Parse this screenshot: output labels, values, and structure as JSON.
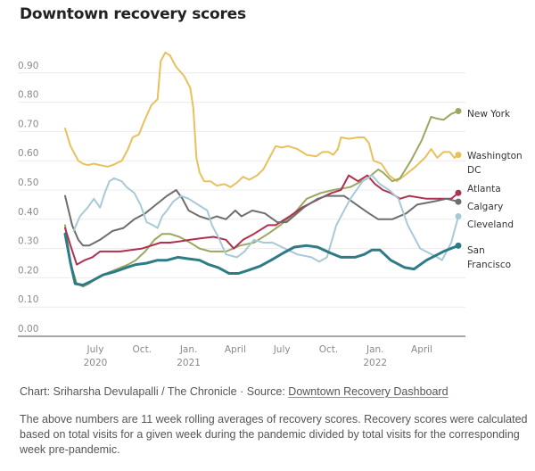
{
  "title": "Downtown recovery scores",
  "credit": {
    "prefix": "Chart: Sriharsha Devulapalli / The Chronicle · Source: ",
    "link_text": "Downtown Recovery Dashboard"
  },
  "note": "The above numbers are 11 week rolling averages of recovery scores. Recovery scores were calculated based on total visits for a given week during the pandemic divided by total visits for the corresponding week pre-pandemic.",
  "chart_data": {
    "type": "line",
    "title": "Downtown recovery scores",
    "xlabel": "",
    "ylabel": "",
    "x_unit": "months since Jan 2020 (0 = Jan 1, 2020)",
    "xlim": [
      2.0,
      31.0
    ],
    "ylim": [
      0,
      0.95
    ],
    "grid": true,
    "legend": "direct labels at line ends (right)",
    "yticks": [
      {
        "value": 0.0,
        "label": "0.00"
      },
      {
        "value": 0.1,
        "label": "0.10"
      },
      {
        "value": 0.2,
        "label": "0.20"
      },
      {
        "value": 0.3,
        "label": "0.30"
      },
      {
        "value": 0.4,
        "label": "0.40"
      },
      {
        "value": 0.5,
        "label": "0.50"
      },
      {
        "value": 0.6,
        "label": "0.60"
      },
      {
        "value": 0.7,
        "label": "0.70"
      },
      {
        "value": 0.8,
        "label": "0.80"
      },
      {
        "value": 0.9,
        "label": "0.90"
      }
    ],
    "xticks": [
      {
        "value": 6,
        "label": "July",
        "sub": "2020"
      },
      {
        "value": 9,
        "label": "Oct.",
        "sub": ""
      },
      {
        "value": 12,
        "label": "Jan.",
        "sub": "2021"
      },
      {
        "value": 15,
        "label": "April",
        "sub": ""
      },
      {
        "value": 18,
        "label": "July",
        "sub": ""
      },
      {
        "value": 21,
        "label": "Oct.",
        "sub": ""
      },
      {
        "value": 24,
        "label": "Jan.",
        "sub": "2022"
      },
      {
        "value": 27,
        "label": "April",
        "sub": ""
      }
    ],
    "series": [
      {
        "name": "Washington DC",
        "label_lines": [
          "Washington",
          "DC"
        ],
        "color": "#e8c15c",
        "points": [
          [
            4.05,
            0.71
          ],
          [
            4.4,
            0.65
          ],
          [
            4.9,
            0.6
          ],
          [
            5.2,
            0.59
          ],
          [
            5.5,
            0.585
          ],
          [
            5.9,
            0.59
          ],
          [
            6.3,
            0.585
          ],
          [
            6.8,
            0.58
          ],
          [
            7.1,
            0.585
          ],
          [
            7.7,
            0.6
          ],
          [
            8.1,
            0.64
          ],
          [
            8.4,
            0.68
          ],
          [
            8.8,
            0.69
          ],
          [
            9.1,
            0.73
          ],
          [
            9.6,
            0.79
          ],
          [
            10.0,
            0.81
          ],
          [
            10.2,
            0.94
          ],
          [
            10.5,
            0.97
          ],
          [
            10.8,
            0.96
          ],
          [
            11.2,
            0.92
          ],
          [
            11.7,
            0.89
          ],
          [
            12.1,
            0.85
          ],
          [
            12.3,
            0.78
          ],
          [
            12.5,
            0.61
          ],
          [
            12.7,
            0.56
          ],
          [
            13.0,
            0.53
          ],
          [
            13.4,
            0.53
          ],
          [
            13.8,
            0.515
          ],
          [
            14.3,
            0.52
          ],
          [
            14.7,
            0.51
          ],
          [
            15.1,
            0.525
          ],
          [
            15.5,
            0.545
          ],
          [
            15.9,
            0.535
          ],
          [
            16.4,
            0.55
          ],
          [
            16.8,
            0.57
          ],
          [
            17.2,
            0.61
          ],
          [
            17.6,
            0.65
          ],
          [
            18.0,
            0.645
          ],
          [
            18.4,
            0.65
          ],
          [
            19.0,
            0.64
          ],
          [
            19.6,
            0.62
          ],
          [
            20.2,
            0.615
          ],
          [
            20.6,
            0.63
          ],
          [
            21.0,
            0.63
          ],
          [
            21.3,
            0.62
          ],
          [
            21.6,
            0.64
          ],
          [
            21.8,
            0.68
          ],
          [
            22.3,
            0.675
          ],
          [
            22.9,
            0.68
          ],
          [
            23.3,
            0.68
          ],
          [
            23.6,
            0.66
          ],
          [
            23.9,
            0.6
          ],
          [
            24.4,
            0.59
          ],
          [
            24.9,
            0.55
          ],
          [
            25.4,
            0.53
          ],
          [
            25.9,
            0.55
          ],
          [
            26.6,
            0.58
          ],
          [
            27.2,
            0.61
          ],
          [
            27.6,
            0.64
          ],
          [
            28.0,
            0.61
          ],
          [
            28.4,
            0.63
          ],
          [
            28.8,
            0.63
          ],
          [
            29.1,
            0.61
          ],
          [
            29.35,
            0.62
          ]
        ]
      },
      {
        "name": "New York",
        "label_lines": [
          "New York"
        ],
        "color": "#9aa861",
        "points": [
          [
            4.05,
            0.38
          ],
          [
            4.4,
            0.25
          ],
          [
            4.8,
            0.18
          ],
          [
            5.2,
            0.17
          ],
          [
            5.6,
            0.18
          ],
          [
            6.1,
            0.2
          ],
          [
            6.7,
            0.215
          ],
          [
            7.4,
            0.23
          ],
          [
            8.1,
            0.245
          ],
          [
            8.6,
            0.26
          ],
          [
            9.2,
            0.29
          ],
          [
            9.8,
            0.33
          ],
          [
            10.3,
            0.35
          ],
          [
            10.8,
            0.35
          ],
          [
            11.4,
            0.34
          ],
          [
            12.1,
            0.32
          ],
          [
            12.7,
            0.3
          ],
          [
            13.4,
            0.29
          ],
          [
            14.4,
            0.29
          ],
          [
            15.3,
            0.31
          ],
          [
            16.2,
            0.32
          ],
          [
            17.1,
            0.35
          ],
          [
            17.9,
            0.38
          ],
          [
            18.8,
            0.42
          ],
          [
            19.6,
            0.47
          ],
          [
            20.5,
            0.49
          ],
          [
            21.3,
            0.5
          ],
          [
            22.4,
            0.51
          ],
          [
            23.5,
            0.54
          ],
          [
            24.2,
            0.57
          ],
          [
            24.5,
            0.56
          ],
          [
            25.1,
            0.53
          ],
          [
            25.6,
            0.54
          ],
          [
            26.3,
            0.6
          ],
          [
            27.0,
            0.67
          ],
          [
            27.6,
            0.75
          ],
          [
            27.9,
            0.745
          ],
          [
            28.4,
            0.74
          ],
          [
            28.9,
            0.76
          ],
          [
            29.35,
            0.77
          ]
        ]
      },
      {
        "name": "Atlanta",
        "label_lines": [
          "Atlanta"
        ],
        "color": "#b0304f",
        "points": [
          [
            4.05,
            0.37
          ],
          [
            4.4,
            0.31
          ],
          [
            4.8,
            0.245
          ],
          [
            5.3,
            0.26
          ],
          [
            5.8,
            0.27
          ],
          [
            6.3,
            0.29
          ],
          [
            6.9,
            0.29
          ],
          [
            7.6,
            0.29
          ],
          [
            8.3,
            0.295
          ],
          [
            9.0,
            0.3
          ],
          [
            9.6,
            0.31
          ],
          [
            10.2,
            0.32
          ],
          [
            10.8,
            0.32
          ],
          [
            11.5,
            0.325
          ],
          [
            12.1,
            0.33
          ],
          [
            12.8,
            0.335
          ],
          [
            13.6,
            0.34
          ],
          [
            14.4,
            0.33
          ],
          [
            14.9,
            0.3
          ],
          [
            15.5,
            0.33
          ],
          [
            16.2,
            0.35
          ],
          [
            17.1,
            0.38
          ],
          [
            17.6,
            0.38
          ],
          [
            18.5,
            0.41
          ],
          [
            19.3,
            0.44
          ],
          [
            20.4,
            0.47
          ],
          [
            21.2,
            0.49
          ],
          [
            21.8,
            0.5
          ],
          [
            22.3,
            0.55
          ],
          [
            22.9,
            0.53
          ],
          [
            23.5,
            0.55
          ],
          [
            24.0,
            0.52
          ],
          [
            24.5,
            0.5
          ],
          [
            25.0,
            0.49
          ],
          [
            25.6,
            0.47
          ],
          [
            26.2,
            0.48
          ],
          [
            27.3,
            0.47
          ],
          [
            28.4,
            0.47
          ],
          [
            28.9,
            0.47
          ],
          [
            29.35,
            0.49
          ]
        ]
      },
      {
        "name": "Calgary",
        "label_lines": [
          "Calgary"
        ],
        "color": "#6e6e6e",
        "points": [
          [
            4.05,
            0.48
          ],
          [
            4.5,
            0.38
          ],
          [
            4.9,
            0.33
          ],
          [
            5.2,
            0.31
          ],
          [
            5.6,
            0.31
          ],
          [
            6.3,
            0.33
          ],
          [
            7.1,
            0.36
          ],
          [
            7.8,
            0.37
          ],
          [
            8.5,
            0.4
          ],
          [
            9.2,
            0.42
          ],
          [
            9.9,
            0.45
          ],
          [
            10.6,
            0.48
          ],
          [
            11.2,
            0.5
          ],
          [
            11.6,
            0.47
          ],
          [
            12.0,
            0.43
          ],
          [
            12.7,
            0.41
          ],
          [
            13.3,
            0.4
          ],
          [
            13.8,
            0.41
          ],
          [
            14.4,
            0.4
          ],
          [
            15.0,
            0.43
          ],
          [
            15.4,
            0.41
          ],
          [
            16.1,
            0.43
          ],
          [
            16.9,
            0.42
          ],
          [
            17.7,
            0.39
          ],
          [
            18.3,
            0.39
          ],
          [
            19.4,
            0.44
          ],
          [
            20.3,
            0.47
          ],
          [
            20.9,
            0.48
          ],
          [
            22.0,
            0.48
          ],
          [
            22.8,
            0.45
          ],
          [
            23.6,
            0.42
          ],
          [
            24.2,
            0.4
          ],
          [
            25.1,
            0.4
          ],
          [
            26.0,
            0.42
          ],
          [
            26.7,
            0.45
          ],
          [
            27.7,
            0.46
          ],
          [
            28.6,
            0.47
          ],
          [
            29.35,
            0.46
          ]
        ]
      },
      {
        "name": "Cleveland",
        "label_lines": [
          "Cleveland"
        ],
        "color": "#a9c9d8",
        "points": [
          [
            4.6,
            0.36
          ],
          [
            5.0,
            0.41
          ],
          [
            5.5,
            0.44
          ],
          [
            5.9,
            0.47
          ],
          [
            6.3,
            0.44
          ],
          [
            6.6,
            0.49
          ],
          [
            6.9,
            0.53
          ],
          [
            7.2,
            0.54
          ],
          [
            7.7,
            0.53
          ],
          [
            8.0,
            0.51
          ],
          [
            8.5,
            0.49
          ],
          [
            8.9,
            0.45
          ],
          [
            9.3,
            0.39
          ],
          [
            9.7,
            0.38
          ],
          [
            10.0,
            0.37
          ],
          [
            10.3,
            0.41
          ],
          [
            10.6,
            0.43
          ],
          [
            11.0,
            0.46
          ],
          [
            11.5,
            0.48
          ],
          [
            12.0,
            0.47
          ],
          [
            12.6,
            0.45
          ],
          [
            13.2,
            0.43
          ],
          [
            13.5,
            0.38
          ],
          [
            13.9,
            0.34
          ],
          [
            14.4,
            0.28
          ],
          [
            15.1,
            0.27
          ],
          [
            15.6,
            0.29
          ],
          [
            16.2,
            0.33
          ],
          [
            16.8,
            0.32
          ],
          [
            17.4,
            0.32
          ],
          [
            18.2,
            0.3
          ],
          [
            19.0,
            0.28
          ],
          [
            19.9,
            0.27
          ],
          [
            20.4,
            0.255
          ],
          [
            20.9,
            0.27
          ],
          [
            21.5,
            0.38
          ],
          [
            22.4,
            0.47
          ],
          [
            23.2,
            0.53
          ],
          [
            23.8,
            0.55
          ],
          [
            24.3,
            0.52
          ],
          [
            24.9,
            0.5
          ],
          [
            25.5,
            0.47
          ],
          [
            26.1,
            0.38
          ],
          [
            26.9,
            0.3
          ],
          [
            28.0,
            0.27
          ],
          [
            28.3,
            0.26
          ],
          [
            28.9,
            0.32
          ],
          [
            29.35,
            0.41
          ]
        ]
      },
      {
        "name": "San Francisco",
        "label_lines": [
          "San",
          "Francisco"
        ],
        "color": "#2e7b86",
        "points": [
          [
            4.05,
            0.35
          ],
          [
            4.4,
            0.25
          ],
          [
            4.7,
            0.18
          ],
          [
            5.2,
            0.175
          ],
          [
            5.8,
            0.19
          ],
          [
            6.5,
            0.21
          ],
          [
            7.2,
            0.22
          ],
          [
            8.0,
            0.235
          ],
          [
            8.6,
            0.245
          ],
          [
            9.3,
            0.25
          ],
          [
            10.0,
            0.26
          ],
          [
            10.6,
            0.26
          ],
          [
            11.3,
            0.27
          ],
          [
            12.0,
            0.265
          ],
          [
            12.7,
            0.26
          ],
          [
            13.3,
            0.245
          ],
          [
            13.9,
            0.235
          ],
          [
            14.6,
            0.215
          ],
          [
            15.2,
            0.215
          ],
          [
            15.8,
            0.225
          ],
          [
            16.6,
            0.24
          ],
          [
            17.3,
            0.26
          ],
          [
            18.1,
            0.285
          ],
          [
            18.8,
            0.305
          ],
          [
            19.6,
            0.31
          ],
          [
            20.3,
            0.305
          ],
          [
            21.1,
            0.285
          ],
          [
            21.8,
            0.27
          ],
          [
            22.7,
            0.27
          ],
          [
            23.3,
            0.28
          ],
          [
            23.8,
            0.295
          ],
          [
            24.3,
            0.295
          ],
          [
            25.0,
            0.26
          ],
          [
            25.9,
            0.235
          ],
          [
            26.5,
            0.23
          ],
          [
            27.3,
            0.26
          ],
          [
            28.4,
            0.29
          ],
          [
            29.35,
            0.31
          ]
        ]
      }
    ]
  }
}
